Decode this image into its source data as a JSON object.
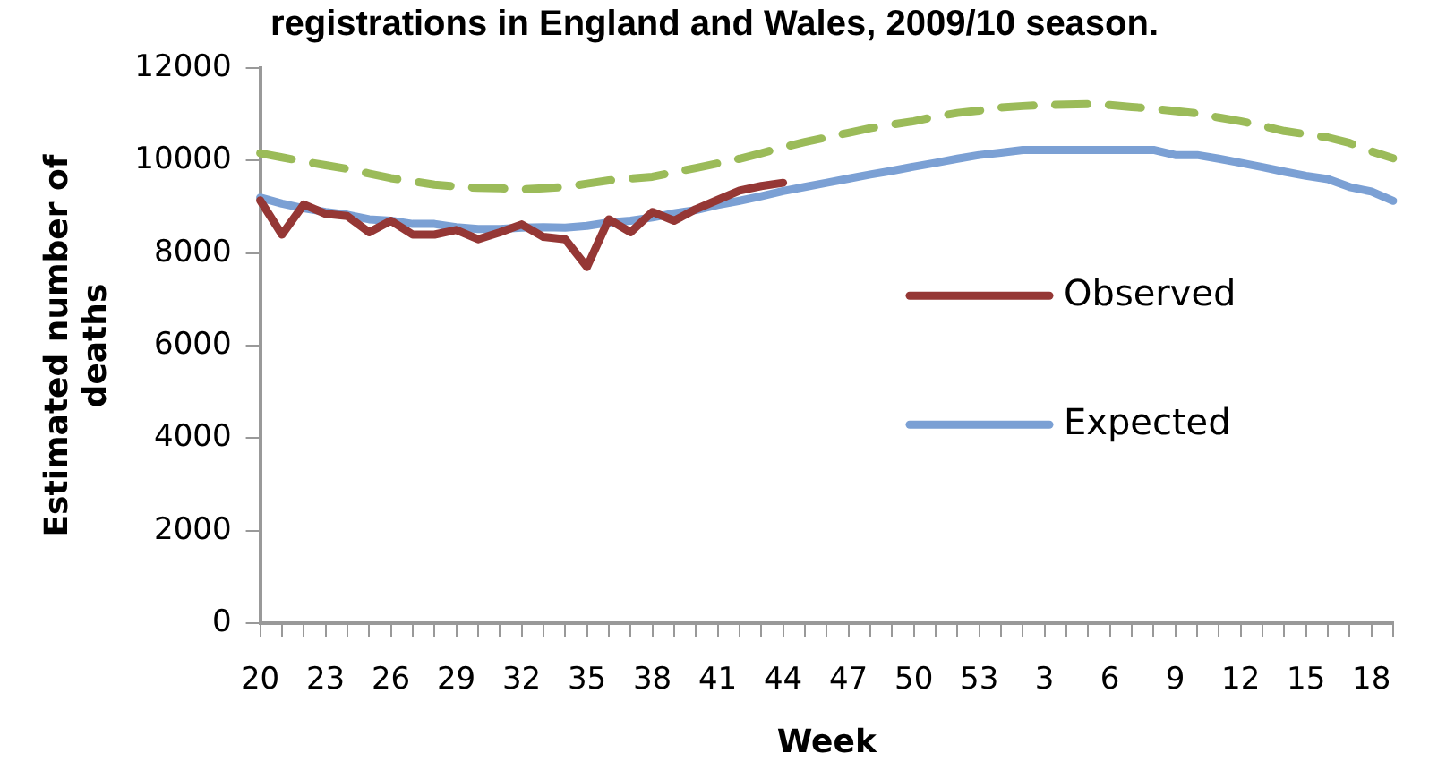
{
  "chart_data": {
    "type": "line",
    "title": "registrations in England and Wales, 2009/10 season.",
    "xlabel": "Week",
    "ylabel": "Estimated number of deaths",
    "categories": [
      "20",
      null,
      null,
      "23",
      null,
      null,
      "26",
      null,
      null,
      "29",
      null,
      null,
      "32",
      null,
      null,
      "35",
      null,
      null,
      "38",
      null,
      null,
      "41",
      null,
      null,
      "44",
      null,
      null,
      "47",
      null,
      null,
      "50",
      null,
      null,
      "53",
      null,
      null,
      "3",
      null,
      null,
      "6",
      null,
      null,
      "9",
      null,
      null,
      "12",
      null,
      null,
      "15",
      null,
      null,
      "18",
      null
    ],
    "series": [
      {
        "name": "Observed",
        "color": "#953735",
        "values": [
          9140,
          8400,
          9050,
          8850,
          8800,
          8450,
          8700,
          8400,
          8400,
          8500,
          8300,
          8450,
          8620,
          8350,
          8300,
          7700,
          8730,
          8450,
          8890,
          8700,
          8950,
          9150,
          9350,
          9450,
          9520,
          null,
          null,
          null,
          null,
          null,
          null,
          null,
          null,
          null,
          null,
          null,
          null,
          null,
          null,
          null,
          null,
          null,
          null,
          null,
          null,
          null,
          null,
          null,
          null,
          null,
          null,
          null,
          null
        ]
      },
      {
        "name": "Expected",
        "color": "#7ba0d4",
        "values": [
          9200,
          9070,
          8970,
          8890,
          8830,
          8730,
          8700,
          8630,
          8630,
          8560,
          8520,
          8520,
          8550,
          8560,
          8550,
          8590,
          8660,
          8700,
          8770,
          8860,
          8930,
          9040,
          9130,
          9230,
          9340,
          9430,
          9520,
          9610,
          9700,
          9780,
          9870,
          9950,
          10040,
          10120,
          10170,
          10230,
          10230,
          10230,
          10230,
          10230,
          10230,
          10230,
          10120,
          10120,
          10040,
          9950,
          9860,
          9760,
          9670,
          9600,
          9430,
          9330,
          9130
        ]
      },
      {
        "color": "#9bbb59",
        "line_style": "dashed",
        "values": [
          10160,
          10070,
          9980,
          9900,
          9820,
          9720,
          9620,
          9550,
          9480,
          9440,
          9410,
          9400,
          9380,
          9400,
          9430,
          9500,
          9570,
          9610,
          9650,
          9750,
          9840,
          9940,
          10040,
          10160,
          10290,
          10400,
          10500,
          10600,
          10700,
          10780,
          10850,
          10950,
          11030,
          11080,
          11150,
          11180,
          11200,
          11210,
          11220,
          11200,
          11160,
          11120,
          11070,
          11020,
          10930,
          10850,
          10750,
          10640,
          10570,
          10500,
          10380,
          10200,
          10050
        ]
      }
    ],
    "ylim": [
      0,
      12000
    ],
    "yticks": [
      0,
      2000,
      4000,
      6000,
      8000,
      10000,
      12000
    ],
    "grid": false,
    "legend": "right",
    "marker": "none",
    "line_style": "solid"
  }
}
